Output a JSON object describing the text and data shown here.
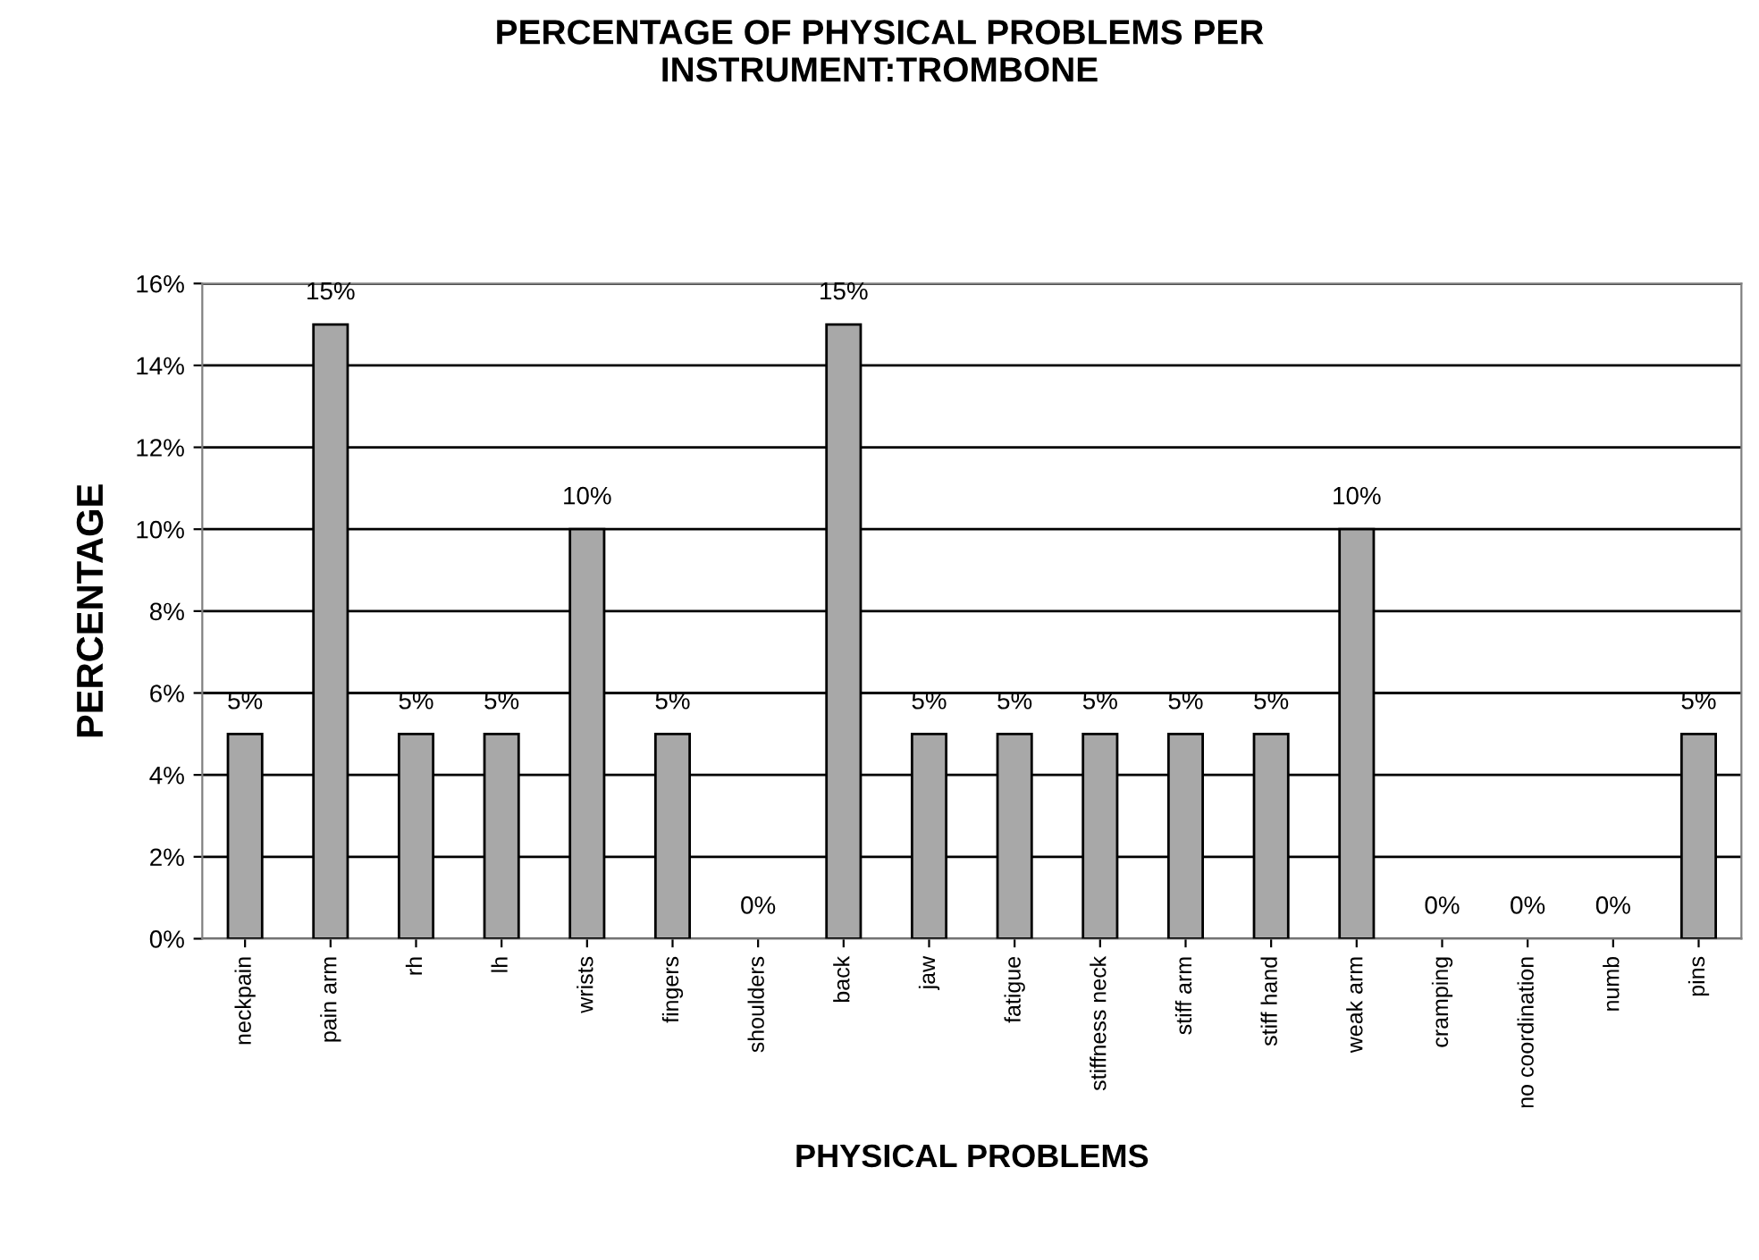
{
  "chart_data": {
    "type": "bar",
    "title": "PERCENTAGE OF PHYSICAL PROBLEMS PER\nINSTRUMENT:TROMBONE",
    "xlabel": "PHYSICAL PROBLEMS",
    "ylabel": "PERCENTAGE",
    "categories": [
      "neckpain",
      "pain arm",
      "rh",
      "lh",
      "wrists",
      "fingers",
      "shoulders",
      "back",
      "jaw",
      "fatigue",
      "stiffness neck",
      "stiff arm",
      "stiff hand",
      "weak arm",
      "cramping",
      "no coordination",
      "numb",
      "pins"
    ],
    "values": [
      5,
      15,
      5,
      5,
      10,
      5,
      0,
      15,
      5,
      5,
      5,
      5,
      5,
      10,
      0,
      0,
      0,
      5
    ],
    "value_labels": [
      "5%",
      "15%",
      "5%",
      "5%",
      "10%",
      "5%",
      "0%",
      "15%",
      "5%",
      "5%",
      "5%",
      "5%",
      "5%",
      "10%",
      "0%",
      "0%",
      "0%",
      "5%"
    ],
    "color": "#a8a8a8",
    "ylim": [
      0,
      16
    ],
    "yticks": [
      {
        "value": 0,
        "label": "0%"
      },
      {
        "value": 2,
        "label": "2%"
      },
      {
        "value": 4,
        "label": "4%"
      },
      {
        "value": 6,
        "label": "6%"
      },
      {
        "value": 8,
        "label": "8%"
      },
      {
        "value": 10,
        "label": "10%"
      },
      {
        "value": 12,
        "label": "12%"
      },
      {
        "value": 14,
        "label": "14%"
      },
      {
        "value": 16,
        "label": "16%"
      }
    ],
    "grid": "y"
  }
}
